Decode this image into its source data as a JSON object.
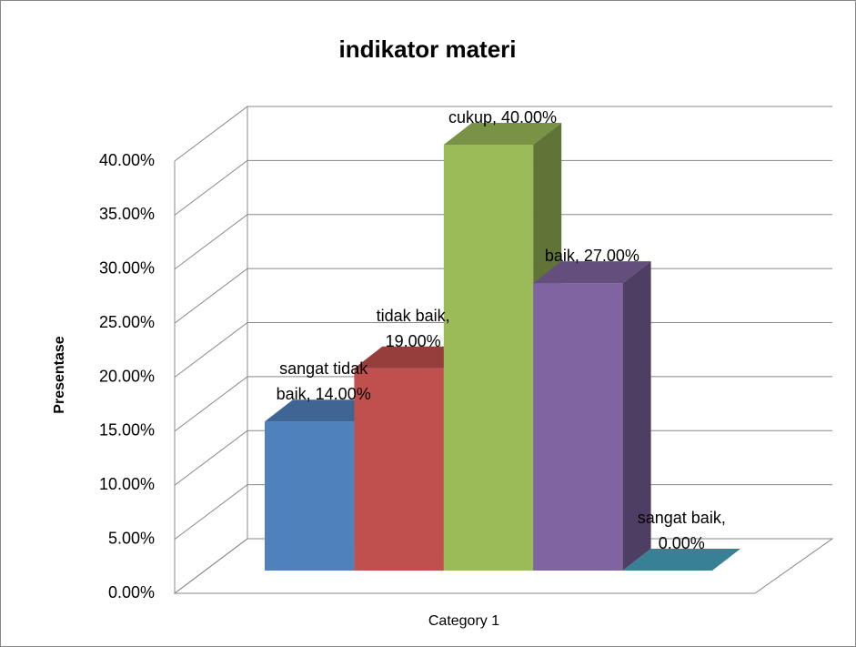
{
  "chart_data": {
    "type": "bar3d",
    "title": "indikator materi",
    "y_label": "Presentase",
    "categories": [
      "Category 1"
    ],
    "series": [
      {
        "name": "sangat tidak baik",
        "color": "#4f81bd",
        "values": [
          14
        ],
        "value_labels": [
          "sangat tidak baik, 14.00%"
        ]
      },
      {
        "name": "tidak baik",
        "color": "#c0504d",
        "values": [
          19
        ],
        "value_labels": [
          "tidak baik, 19.00%"
        ]
      },
      {
        "name": "cukup",
        "color": "#9bbb59",
        "values": [
          40
        ],
        "value_labels": [
          "cukup, 40.00%"
        ]
      },
      {
        "name": "baik",
        "color": "#8064a2",
        "values": [
          27
        ],
        "value_labels": [
          "baik, 27.00%"
        ]
      },
      {
        "name": "sangat baik",
        "color": "#4bacc6",
        "values": [
          0
        ],
        "value_labels": [
          "sangat baik, 0.00%"
        ]
      }
    ],
    "ylim": [
      0,
      40
    ],
    "yticks": [
      {
        "value": 0,
        "label": "0.00%"
      },
      {
        "value": 5,
        "label": "5.00%"
      },
      {
        "value": 10,
        "label": "10.00%"
      },
      {
        "value": 15,
        "label": "15.00%"
      },
      {
        "value": 20,
        "label": "20.00%"
      },
      {
        "value": 25,
        "label": "25.00%"
      },
      {
        "value": 30,
        "label": "30.00%"
      },
      {
        "value": 35,
        "label": "35.00%"
      },
      {
        "value": 40,
        "label": "40.00%"
      }
    ],
    "grid": true
  }
}
